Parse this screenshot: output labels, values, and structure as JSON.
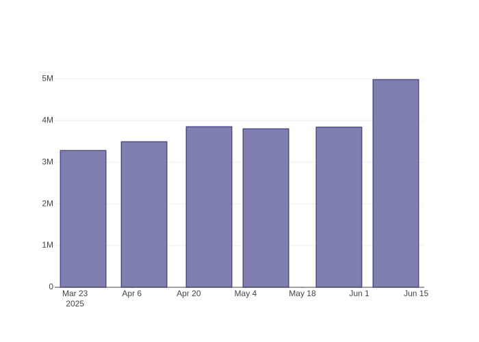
{
  "chart_data": {
    "type": "bar",
    "x": [
      "2025-03-25",
      "2025-04-09",
      "2025-04-25",
      "2025-05-09",
      "2025-05-27",
      "2025-06-10"
    ],
    "values": [
      3280000,
      3490000,
      3850000,
      3800000,
      3840000,
      4980000
    ],
    "color": "#7f7fb0",
    "edgecolor": "#4b4b88",
    "xlim": [
      "2025-03-18",
      "2025-06-17"
    ],
    "xticks": [
      {
        "value": "2025-03-23",
        "label": "Mar 23\n2025"
      },
      {
        "value": "2025-04-06",
        "label": "Apr 6"
      },
      {
        "value": "2025-04-20",
        "label": "Apr 20"
      },
      {
        "value": "2025-05-04",
        "label": "May 4"
      },
      {
        "value": "2025-05-18",
        "label": "May 18"
      },
      {
        "value": "2025-06-01",
        "label": "Jun 1"
      },
      {
        "value": "2025-06-15",
        "label": "Jun 15"
      }
    ],
    "ylim": [
      0,
      5250000
    ],
    "yticks": [
      0,
      {
        "value": 1000000,
        "label": "1M"
      },
      {
        "value": 2000000,
        "label": "2M"
      },
      {
        "value": 3000000,
        "label": "3M"
      },
      {
        "value": 4000000,
        "label": "4M"
      },
      {
        "value": 5000000,
        "label": "5M"
      }
    ],
    "grid": true
  }
}
